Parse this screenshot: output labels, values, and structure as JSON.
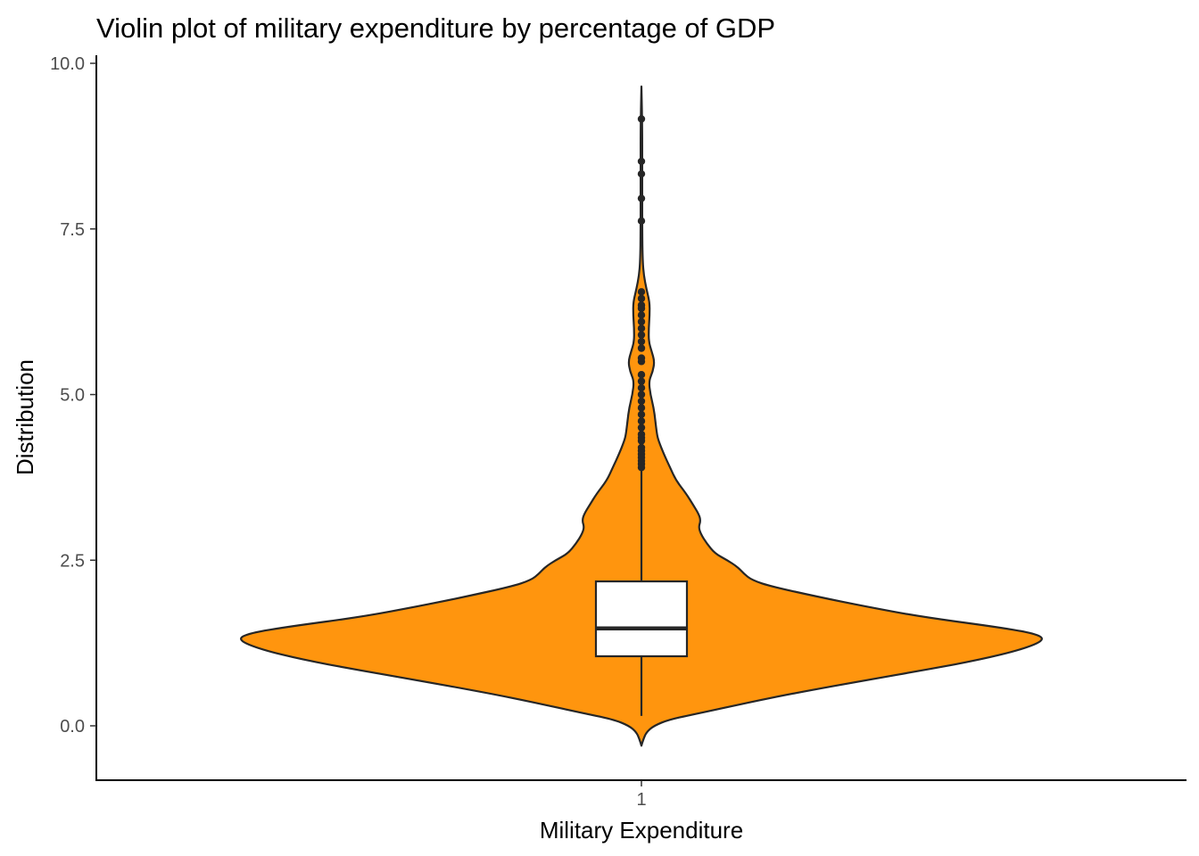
{
  "chart_data": {
    "type": "violin",
    "title": "Violin plot of military expenditure by percentage of GDP",
    "xlabel": "Military Expenditure",
    "ylabel": "Distribution",
    "categories": [
      "1"
    ],
    "y_ticks": [
      "0.0",
      "2.5",
      "5.0",
      "7.5",
      "10.0"
    ],
    "ylim": [
      -0.8,
      10.1
    ],
    "grid": false,
    "legend": "none",
    "fill_color": "#FF950E",
    "line_color": "#262626",
    "violin": {
      "y_range": [
        -0.3,
        9.65
      ],
      "density_profile": [
        [
          -0.3,
          0.0
        ],
        [
          -0.2,
          0.005
        ],
        [
          -0.1,
          0.012
        ],
        [
          0.0,
          0.03
        ],
        [
          0.1,
          0.07
        ],
        [
          0.2,
          0.15
        ],
        [
          0.35,
          0.26
        ],
        [
          0.5,
          0.38
        ],
        [
          0.7,
          0.56
        ],
        [
          0.85,
          0.7
        ],
        [
          1.0,
          0.83
        ],
        [
          1.15,
          0.93
        ],
        [
          1.3,
          0.99
        ],
        [
          1.4,
          0.96
        ],
        [
          1.5,
          0.86
        ],
        [
          1.65,
          0.68
        ],
        [
          1.8,
          0.55
        ],
        [
          1.95,
          0.43
        ],
        [
          2.1,
          0.32
        ],
        [
          2.2,
          0.27
        ],
        [
          2.3,
          0.25
        ],
        [
          2.4,
          0.235
        ],
        [
          2.5,
          0.21
        ],
        [
          2.6,
          0.18
        ],
        [
          2.75,
          0.16
        ],
        [
          2.9,
          0.145
        ],
        [
          3.0,
          0.14
        ],
        [
          3.1,
          0.145
        ],
        [
          3.2,
          0.14
        ],
        [
          3.35,
          0.125
        ],
        [
          3.5,
          0.11
        ],
        [
          3.7,
          0.085
        ],
        [
          3.9,
          0.07
        ],
        [
          4.1,
          0.055
        ],
        [
          4.3,
          0.042
        ],
        [
          4.4,
          0.038
        ],
        [
          4.6,
          0.034
        ],
        [
          4.8,
          0.03
        ],
        [
          5.0,
          0.022
        ],
        [
          5.2,
          0.018
        ],
        [
          5.35,
          0.028
        ],
        [
          5.5,
          0.032
        ],
        [
          5.65,
          0.025
        ],
        [
          5.8,
          0.018
        ],
        [
          6.0,
          0.018
        ],
        [
          6.2,
          0.02
        ],
        [
          6.4,
          0.02
        ],
        [
          6.6,
          0.012
        ],
        [
          6.8,
          0.006
        ],
        [
          7.0,
          0.003
        ],
        [
          7.5,
          0.002
        ],
        [
          8.0,
          0.002
        ],
        [
          8.5,
          0.002
        ],
        [
          9.0,
          0.002
        ],
        [
          9.65,
          0.0
        ]
      ]
    },
    "boxplot": {
      "q1": 1.05,
      "median": 1.47,
      "q3": 2.18,
      "whisker_low": 0.15,
      "whisker_high": 3.85,
      "outliers": [
        3.9,
        3.95,
        4.0,
        4.05,
        4.1,
        4.15,
        4.2,
        4.3,
        4.35,
        4.4,
        4.5,
        4.6,
        4.7,
        4.8,
        4.9,
        5.0,
        5.1,
        5.2,
        5.3,
        5.5,
        5.55,
        5.7,
        5.8,
        5.9,
        6.0,
        6.1,
        6.2,
        6.3,
        6.35,
        6.45,
        6.55,
        7.62,
        7.96,
        8.33,
        8.52,
        9.16
      ]
    }
  }
}
